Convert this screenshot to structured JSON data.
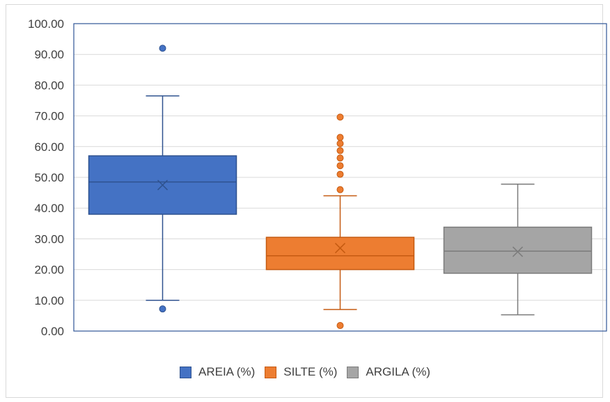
{
  "chart_data": {
    "type": "boxplot",
    "ylim": [
      0,
      100
    ],
    "y_tick_labels": [
      "0.00",
      "10.00",
      "20.00",
      "30.00",
      "40.00",
      "50.00",
      "60.00",
      "70.00",
      "80.00",
      "90.00",
      "100.00"
    ],
    "grid": true,
    "legend_position": "bottom",
    "series": [
      {
        "name": "AREIA (%)",
        "color": "#4472c4",
        "border": "#2f528f",
        "whisker_low": 10.0,
        "q1": 38.0,
        "median": 48.5,
        "q3": 57.0,
        "whisker_high": 76.5,
        "mean": 47.5,
        "outliers": [
          7.2,
          92.0
        ]
      },
      {
        "name": "SILTE (%)",
        "color": "#ed7d31",
        "border": "#c55a11",
        "whisker_low": 7.0,
        "q1": 20.0,
        "median": 24.5,
        "q3": 30.5,
        "whisker_high": 44.0,
        "mean": 27.0,
        "outliers": [
          1.8,
          46.0,
          51.0,
          53.8,
          56.3,
          58.7,
          61.0,
          63.0,
          69.6
        ]
      },
      {
        "name": "ARGILA (%)",
        "color": "#a5a5a5",
        "border": "#7b7b7b",
        "whisker_low": 5.3,
        "q1": 18.8,
        "median": 26.0,
        "q3": 33.8,
        "whisker_high": 47.8,
        "mean": 25.8,
        "outliers": []
      }
    ]
  }
}
